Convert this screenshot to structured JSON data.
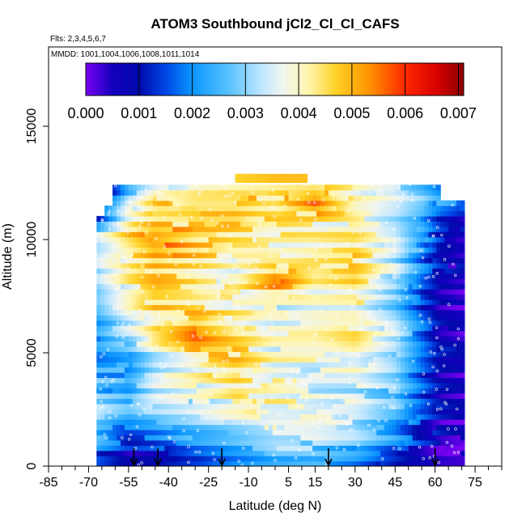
{
  "chart_data": {
    "type": "heatmap",
    "title": "ATOM3 Southbound jCl2_Cl_Cl_CAFS",
    "flights_label": "Flts: 2,3,4,5,6,7",
    "mmdd_label": "MMDD: 1001,1004,1006,1008,1011,1014",
    "xlabel": "Latitude (deg N)",
    "ylabel": "Altitude (m)",
    "xlim": [
      -85,
      85
    ],
    "ylim": [
      0,
      18500
    ],
    "x_ticks": [
      -85,
      -70,
      -55,
      -40,
      -25,
      -10,
      5,
      15,
      30,
      45,
      60,
      75
    ],
    "x_minor_ticks": [
      -80,
      -75,
      -65,
      -60,
      -50,
      -45,
      -35,
      -30,
      -20,
      -15,
      -5,
      0,
      10,
      20,
      25,
      35,
      40,
      50,
      55,
      65,
      70,
      80,
      85
    ],
    "y_ticks": [
      0,
      5000,
      10000,
      15000
    ],
    "colorbar": {
      "min": 0.0,
      "max": 0.0071,
      "ticks": [
        "0.000",
        "0.001",
        "0.002",
        "0.003",
        "0.004",
        "0.005",
        "0.006",
        "0.007"
      ],
      "tick_values": [
        0,
        0.001,
        0.002,
        0.003,
        0.004,
        0.005,
        0.006,
        0.007
      ]
    },
    "data_extent": {
      "lat_min": -67,
      "lat_max": 71,
      "alt_min": 0,
      "alt_max": 12900
    },
    "profile_arrows_lat": [
      -53,
      -44,
      -20,
      20,
      60
    ],
    "layers": [
      {
        "alt": 150,
        "lat": [
          -67,
          -55,
          -45,
          -30,
          -15,
          0,
          15,
          30,
          45,
          55,
          62,
          71
        ],
        "val": [
          0.0014,
          0.0006,
          0.0008,
          0.0012,
          0.0018,
          0.0022,
          0.0024,
          0.002,
          0.001,
          0.0005,
          0.0002,
          0.0001
        ]
      },
      {
        "alt": 700,
        "lat": [
          -67,
          -55,
          -45,
          -30,
          -15,
          0,
          15,
          30,
          45,
          55,
          62,
          71
        ],
        "val": [
          0.0018,
          0.001,
          0.0012,
          0.002,
          0.0024,
          0.0028,
          0.0028,
          0.0024,
          0.0015,
          0.0008,
          0.0004,
          0.0002
        ]
      },
      {
        "alt": 1400,
        "lat": [
          -67,
          -55,
          -45,
          -30,
          -15,
          0,
          15,
          30,
          45,
          55,
          62,
          71
        ],
        "val": [
          0.0025,
          0.0018,
          0.002,
          0.0026,
          0.003,
          0.0034,
          0.0033,
          0.003,
          0.0022,
          0.0012,
          0.0006,
          0.0003
        ]
      },
      {
        "alt": 2300,
        "lat": [
          -67,
          -55,
          -45,
          -30,
          -15,
          0,
          15,
          30,
          45,
          55,
          62,
          71
        ],
        "val": [
          0.003,
          0.0024,
          0.0028,
          0.0032,
          0.0036,
          0.004,
          0.0039,
          0.0035,
          0.0026,
          0.0014,
          0.0007,
          0.0004
        ]
      },
      {
        "alt": 3300,
        "lat": [
          -67,
          -55,
          -45,
          -30,
          -15,
          0,
          15,
          30,
          45,
          55,
          62,
          71
        ],
        "val": [
          0.0026,
          0.0022,
          0.0032,
          0.0036,
          0.0042,
          0.004,
          0.0036,
          0.0034,
          0.0028,
          0.0016,
          0.0008,
          0.0005
        ]
      },
      {
        "alt": 4500,
        "lat": [
          -67,
          -55,
          -45,
          -30,
          -15,
          0,
          15,
          30,
          45,
          55,
          62,
          71
        ],
        "val": [
          0.0022,
          0.0024,
          0.0034,
          0.004,
          0.0046,
          0.0038,
          0.0037,
          0.004,
          0.003,
          0.0016,
          0.0008,
          0.0005
        ]
      },
      {
        "alt": 5800,
        "lat": [
          -67,
          -55,
          -45,
          -30,
          -15,
          0,
          15,
          30,
          45,
          55,
          62,
          71
        ],
        "val": [
          0.002,
          0.003,
          0.004,
          0.0054,
          0.0044,
          0.0038,
          0.0038,
          0.0042,
          0.0032,
          0.0018,
          0.0008,
          0.0005
        ]
      },
      {
        "alt": 7000,
        "lat": [
          -67,
          -55,
          -45,
          -30,
          -15,
          0,
          15,
          30,
          45,
          55,
          62,
          71
        ],
        "val": [
          0.0024,
          0.0036,
          0.0046,
          0.0044,
          0.004,
          0.0036,
          0.004,
          0.004,
          0.003,
          0.0016,
          0.0008,
          0.0005
        ]
      },
      {
        "alt": 8200,
        "lat": [
          -67,
          -55,
          -45,
          -30,
          -15,
          0,
          15,
          30,
          45,
          55,
          62,
          71
        ],
        "val": [
          0.0028,
          0.004,
          0.0046,
          0.0042,
          0.0038,
          0.0054,
          0.004,
          0.0044,
          0.0032,
          0.0016,
          0.0008,
          0.0005
        ]
      },
      {
        "alt": 9200,
        "lat": [
          -67,
          -55,
          -45,
          -30,
          -15,
          0,
          15,
          30,
          45,
          55,
          62,
          71
        ],
        "val": [
          0.0034,
          0.0044,
          0.005,
          0.0046,
          0.004,
          0.004,
          0.0044,
          0.0046,
          0.0034,
          0.002,
          0.001,
          0.0006
        ]
      },
      {
        "alt": 10000,
        "lat": [
          -67,
          -55,
          -45,
          -30,
          -15,
          0,
          15,
          30,
          45,
          55,
          62,
          71
        ],
        "val": [
          0.0038,
          0.0048,
          0.0056,
          0.0048,
          0.0044,
          0.0042,
          0.0042,
          0.0044,
          0.0036,
          0.0022,
          0.001,
          0.0006
        ]
      },
      {
        "alt": 10800,
        "lat": [
          -67,
          -55,
          -45,
          -30,
          -15,
          0,
          15,
          30,
          45,
          55,
          62,
          71
        ],
        "val": [
          0.0016,
          0.004,
          0.0046,
          0.0046,
          0.0046,
          0.0042,
          0.004,
          0.0038,
          0.0032,
          0.0024,
          0.0014,
          0.0008
        ]
      },
      {
        "alt": 11600,
        "lat": [
          -67,
          -55,
          -45,
          -30,
          -15,
          0,
          15,
          30,
          45,
          55,
          62,
          71
        ],
        "val": [
          0.0006,
          0.003,
          0.0044,
          0.0048,
          0.0048,
          0.0044,
          0.0058,
          0.004,
          0.0034,
          0.0028,
          0.002,
          0.0016
        ]
      },
      {
        "alt": 12400,
        "lat": [
          -67,
          -55,
          -45,
          -30,
          -15,
          0,
          15,
          30,
          45,
          55,
          62,
          71
        ],
        "val": [
          0.0,
          0.0026,
          0.0036,
          0.0042,
          0.0044,
          0.0046,
          0.0046,
          0.0042,
          0.0036,
          0.003,
          0.0024,
          0.002
        ]
      }
    ]
  }
}
